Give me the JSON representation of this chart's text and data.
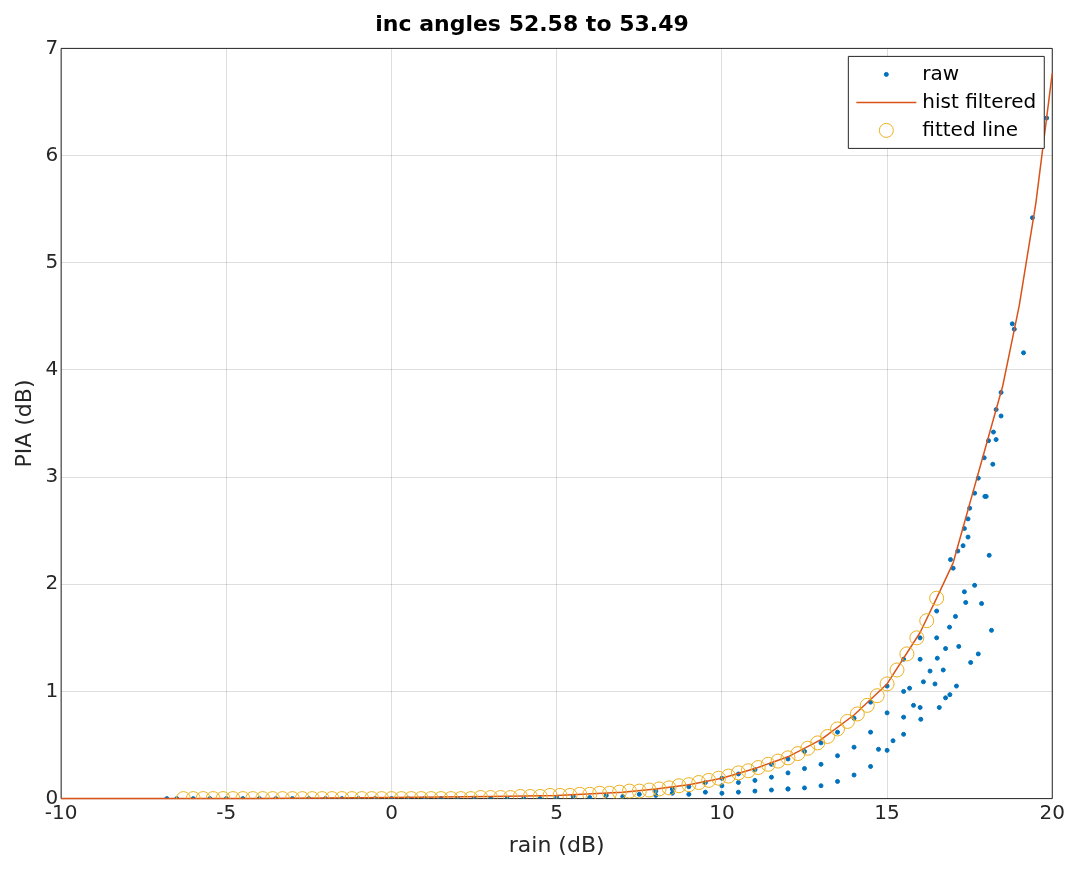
{
  "chart_data": {
    "type": "scatter",
    "title": "inc angles 52.58 to 53.49",
    "xlabel": "rain (dB)",
    "ylabel": "PIA (dB)",
    "xlim": [
      -10,
      20
    ],
    "xticks": [
      -10,
      -5,
      0,
      5,
      10,
      15,
      20
    ],
    "ylim": [
      0,
      7
    ],
    "yticks": [
      0,
      1,
      2,
      3,
      4,
      5,
      6,
      7
    ],
    "grid": true,
    "legend": "top right",
    "series": [
      {
        "name": "raw",
        "marker": "circle",
        "color": "#0072bd",
        "x": [
          -6.8,
          -6.5,
          -6,
          -5.5,
          -5,
          -4.5,
          -4,
          -3.5,
          -3,
          -2.5,
          -2,
          -1.5,
          -1,
          -0.5,
          0,
          0.5,
          1,
          1.5,
          2,
          2.5,
          3,
          3.5,
          4,
          4.5,
          5,
          5.5,
          6,
          6.5,
          7,
          7.5,
          8,
          8,
          8.5,
          8.5,
          9,
          9,
          9.5,
          9.5,
          10,
          10,
          10,
          10.5,
          10.5,
          10.5,
          11,
          11,
          11,
          11.5,
          11.5,
          11.5,
          12,
          12,
          12,
          12.5,
          12.5,
          12.5,
          13,
          13,
          13,
          13.5,
          13.5,
          13.5,
          14,
          14,
          14,
          14.5,
          14.5,
          14.5,
          15,
          15,
          15,
          15.5,
          15.5,
          15.5,
          16,
          16,
          16,
          16.5,
          16.5,
          17,
          12,
          14.74,
          15.18,
          15.5,
          15.68,
          15.8,
          16.02,
          16.1,
          16.3,
          16.45,
          16.52,
          16.58,
          16.7,
          16.77,
          16.77,
          16.89,
          16.9,
          17.07,
          17.1,
          17.17,
          17.34,
          17.38,
          17.53,
          17.65,
          17.76,
          17.86,
          18.16,
          16.92,
          17.14,
          17.3,
          17.45,
          17.34,
          17.45,
          17.5,
          17.65,
          17.76,
          17.96,
          18,
          18.09,
          17.94,
          18.07,
          18.2,
          18.22,
          18.3,
          18.3,
          18.45,
          18.45,
          18.79,
          18.85,
          19.13,
          19.4,
          19.83
        ],
        "values": [
          0,
          0,
          0,
          0,
          0,
          0,
          0,
          0,
          0,
          0,
          0,
          0,
          0,
          0,
          0,
          0,
          0,
          0,
          0,
          0,
          0,
          0,
          0,
          0,
          0.01,
          0.02,
          0.01,
          0.03,
          0.02,
          0.04,
          0.03,
          0.07,
          0.05,
          0.09,
          0.04,
          0.11,
          0.06,
          0.15,
          0.05,
          0.12,
          0.19,
          0.06,
          0.15,
          0.23,
          0.07,
          0.17,
          0.27,
          0.08,
          0.2,
          0.32,
          0.09,
          0.24,
          0.37,
          0.1,
          0.28,
          0.44,
          0.12,
          0.32,
          0.52,
          0.16,
          0.4,
          0.62,
          0.22,
          0.48,
          0.75,
          0.3,
          0.62,
          0.9,
          0.45,
          0.8,
          1.05,
          0.6,
          1,
          1.3,
          0.85,
          1.3,
          1.5,
          1.75,
          1.5,
          2.15,
          0.09,
          0.46,
          0.54,
          0.76,
          1.03,
          0.87,
          0.74,
          1.09,
          1.19,
          1.07,
          1.31,
          0.85,
          1.2,
          1.4,
          0.94,
          1.6,
          0.97,
          1.7,
          1.05,
          1.42,
          1.93,
          1.83,
          1.27,
          1.99,
          1.35,
          1.82,
          1.57,
          2.23,
          2.31,
          2.36,
          2.44,
          2.52,
          2.61,
          2.71,
          2.85,
          2.99,
          2.82,
          2.82,
          2.27,
          3.18,
          3.34,
          3.12,
          3.42,
          3.35,
          3.63,
          3.79,
          3.57,
          4.43,
          4.38,
          4.16,
          5.42,
          6.35
        ]
      },
      {
        "name": "hist filtered",
        "type": "line",
        "marker": "none",
        "color": "#d95319",
        "x": [
          -10,
          -7,
          -5,
          0,
          3,
          5,
          7,
          8,
          9,
          10,
          11,
          12,
          13,
          14,
          15,
          16,
          16.5,
          17,
          17.5,
          18,
          18.5,
          19,
          19.5,
          20
        ],
        "values": [
          0,
          0,
          0,
          0.01,
          0.02,
          0.03,
          0.06,
          0.09,
          0.13,
          0.19,
          0.28,
          0.39,
          0.55,
          0.78,
          1.07,
          1.55,
          1.87,
          2.2,
          2.75,
          3.3,
          3.85,
          4.6,
          5.55,
          6.77
        ]
      },
      {
        "name": "fitted line",
        "marker": "circle",
        "color": "#edb120",
        "x": [
          -6.3,
          -6,
          -5.7,
          -5.4,
          -5.1,
          -4.8,
          -4.5,
          -4.2,
          -3.9,
          -3.6,
          -3.3,
          -3,
          -2.7,
          -2.4,
          -2.1,
          -1.8,
          -1.5,
          -1.2,
          -0.9,
          -0.6,
          -0.3,
          0,
          0.3,
          0.6,
          0.9,
          1.2,
          1.5,
          1.8,
          2.1,
          2.4,
          2.7,
          3,
          3.3,
          3.6,
          3.9,
          4.2,
          4.5,
          4.8,
          5.1,
          5.4,
          5.7,
          6,
          6.3,
          6.6,
          6.9,
          7.2,
          7.5,
          7.8,
          8.1,
          8.4,
          8.7,
          9,
          9.3,
          9.6,
          9.9,
          10.2,
          10.5,
          10.8,
          11.1,
          11.4,
          11.7,
          12,
          12.3,
          12.6,
          12.9,
          13.2,
          13.5,
          13.8,
          14.1,
          14.4,
          14.7,
          15,
          15.3,
          15.6,
          15.9,
          16.2,
          16.5
        ],
        "values": [
          0,
          0,
          0,
          0,
          0,
          0,
          0,
          0,
          0,
          0,
          0,
          0,
          0,
          0,
          0,
          0,
          0,
          0,
          0,
          0,
          0,
          0,
          0,
          0,
          0,
          0,
          0,
          0,
          0,
          0,
          0.01,
          0.01,
          0.01,
          0.01,
          0.02,
          0.02,
          0.02,
          0.03,
          0.03,
          0.03,
          0.04,
          0.04,
          0.05,
          0.05,
          0.06,
          0.07,
          0.07,
          0.08,
          0.09,
          0.1,
          0.12,
          0.13,
          0.15,
          0.17,
          0.19,
          0.21,
          0.24,
          0.26,
          0.29,
          0.32,
          0.35,
          0.38,
          0.42,
          0.47,
          0.52,
          0.58,
          0.65,
          0.72,
          0.79,
          0.87,
          0.96,
          1.07,
          1.2,
          1.35,
          1.5,
          1.66,
          1.87
        ]
      }
    ]
  }
}
